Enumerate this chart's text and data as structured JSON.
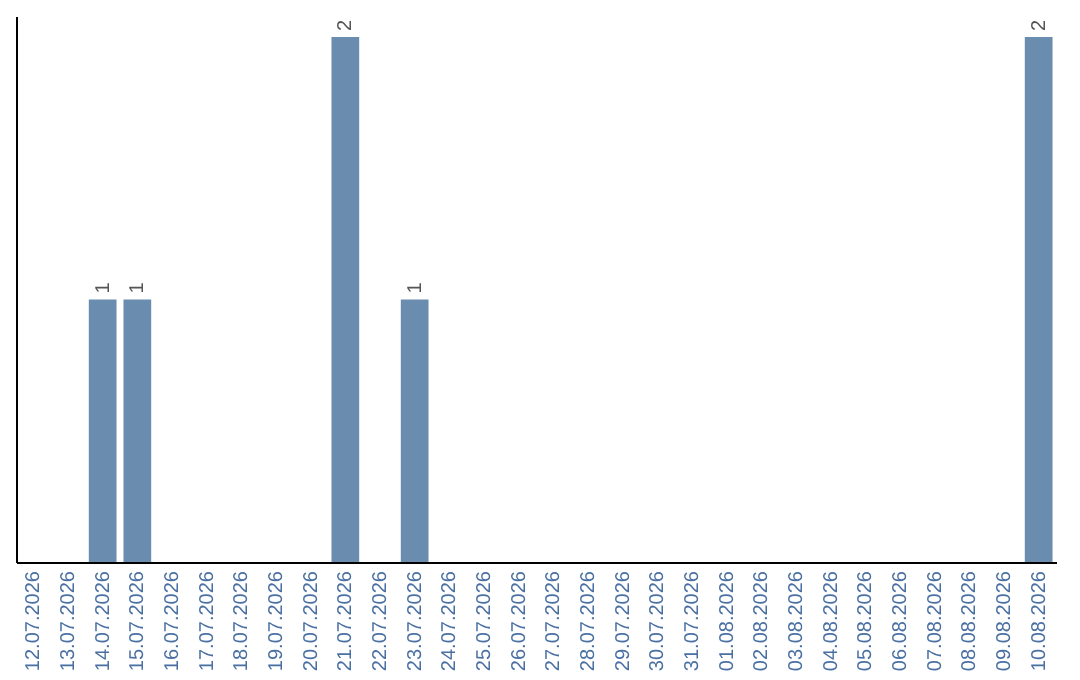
{
  "chart_data": {
    "type": "bar",
    "categories": [
      "12.07.2026",
      "13.07.2026",
      "14.07.2026",
      "15.07.2026",
      "16.07.2026",
      "17.07.2026",
      "18.07.2026",
      "19.07.2026",
      "20.07.2026",
      "21.07.2026",
      "22.07.2026",
      "23.07.2026",
      "24.07.2026",
      "25.07.2026",
      "26.07.2026",
      "27.07.2026",
      "28.07.2026",
      "29.07.2026",
      "30.07.2026",
      "31.07.2026",
      "01.08.2026",
      "02.08.2026",
      "03.08.2026",
      "04.08.2026",
      "05.08.2026",
      "06.08.2026",
      "07.08.2026",
      "08.08.2026",
      "09.08.2026",
      "10.08.2026"
    ],
    "values": [
      0,
      0,
      1,
      1,
      0,
      0,
      0,
      0,
      0,
      2,
      0,
      1,
      0,
      0,
      0,
      0,
      0,
      0,
      0,
      0,
      0,
      0,
      0,
      0,
      0,
      0,
      0,
      0,
      0,
      2
    ],
    "value_labels": [
      null,
      null,
      "1",
      "1",
      null,
      null,
      null,
      null,
      null,
      "2",
      null,
      "1",
      null,
      null,
      null,
      null,
      null,
      null,
      null,
      null,
      null,
      null,
      null,
      null,
      null,
      null,
      null,
      null,
      null,
      "2"
    ],
    "color": "#6a8caf",
    "ylim": [
      0,
      2.08
    ],
    "tick_labels": "x"
  }
}
